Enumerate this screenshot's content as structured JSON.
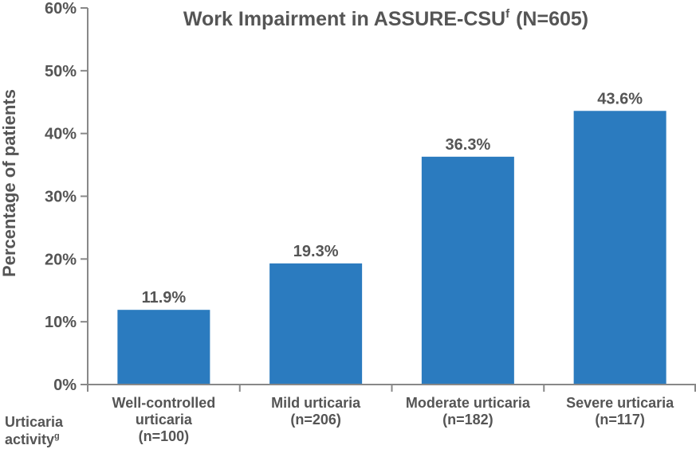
{
  "chart_data": {
    "type": "bar",
    "title": "Work Impairment in ASSURE-CSU",
    "title_superscript": "f",
    "title_suffix": "(N=605)",
    "ylabel": "Percentage of patients",
    "xlabel": "",
    "row_label": {
      "line1": "Urticaria",
      "line2": "activity",
      "superscript": "g"
    },
    "categories": [
      {
        "lines": [
          "Well-controlled",
          "urticaria",
          "(n=100)"
        ]
      },
      {
        "lines": [
          "Mild urticaria",
          "(n=206)"
        ]
      },
      {
        "lines": [
          "Moderate urticaria",
          "(n=182)"
        ]
      },
      {
        "lines": [
          "Severe urticaria",
          "(n=117)"
        ]
      }
    ],
    "values": [
      11.9,
      19.3,
      36.3,
      43.6
    ],
    "value_labels": [
      "11.9%",
      "19.3%",
      "36.3%",
      "43.6%"
    ],
    "ylim": [
      0,
      60
    ],
    "yticks": [
      0,
      10,
      20,
      30,
      40,
      50,
      60
    ],
    "ytick_labels": [
      "0%",
      "10%",
      "20%",
      "30%",
      "40%",
      "50%",
      "60%"
    ],
    "grid": false,
    "legend": "none",
    "bar_color": "#2b7bbf",
    "axis_color": "#888888",
    "text_color": "#555555"
  }
}
